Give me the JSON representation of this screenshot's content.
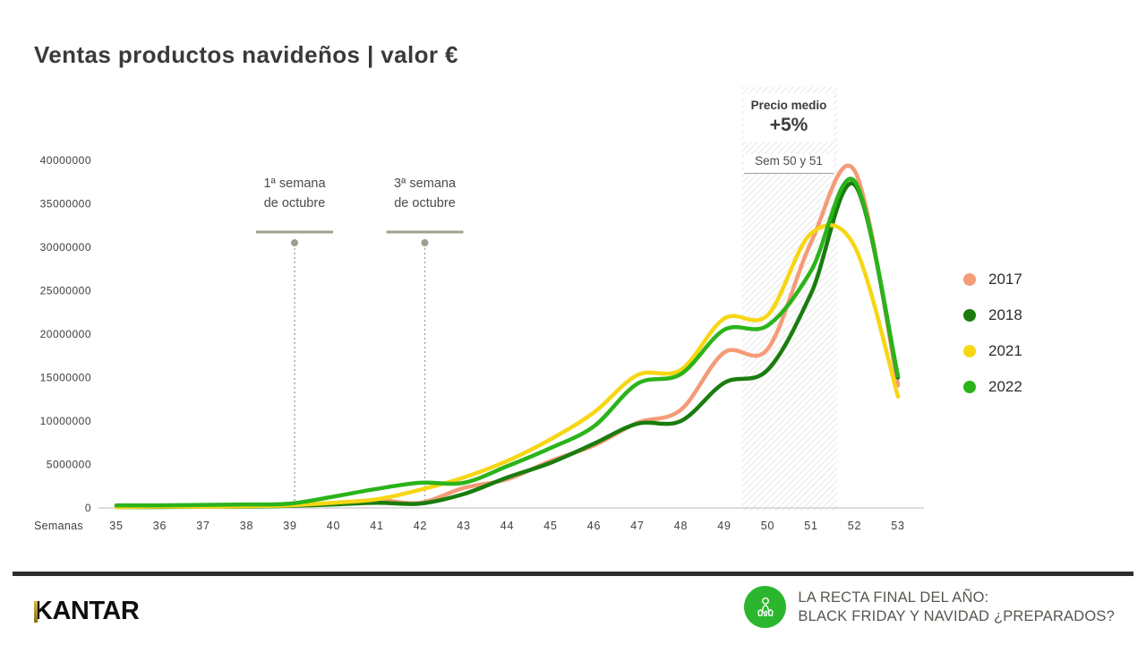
{
  "title": "Ventas productos navideños  |  valor €",
  "chart_data": {
    "type": "line",
    "title": "Ventas productos navideños | valor €",
    "xlabel": "Semanas",
    "ylabel": "",
    "x": [
      35,
      36,
      37,
      38,
      39,
      40,
      41,
      42,
      43,
      44,
      45,
      46,
      47,
      48,
      49,
      50,
      51,
      52,
      53
    ],
    "ylim": [
      0,
      40000000
    ],
    "y_ticks": [
      0,
      5000000,
      10000000,
      15000000,
      20000000,
      25000000,
      30000000,
      35000000,
      40000000
    ],
    "grid": false,
    "legend_position": "right",
    "series": [
      {
        "name": "2017",
        "color": "#F49B77",
        "values": [
          150000,
          150000,
          200000,
          200000,
          300000,
          500000,
          900000,
          600000,
          2300000,
          3300000,
          5400000,
          7200000,
          9800000,
          11300000,
          17900000,
          18300000,
          30600000,
          38800000,
          14100000
        ]
      },
      {
        "name": "2018",
        "color": "#1A7C0E",
        "values": [
          100000,
          100000,
          150000,
          150000,
          250000,
          400000,
          600000,
          500000,
          1600000,
          3500000,
          5200000,
          7400000,
          9700000,
          10000000,
          14400000,
          15900000,
          24700000,
          37200000,
          15000000
        ]
      },
      {
        "name": "2021",
        "color": "#F7D614",
        "values": [
          100000,
          150000,
          150000,
          200000,
          300000,
          600000,
          1000000,
          2100000,
          3500000,
          5400000,
          7900000,
          11000000,
          15300000,
          15900000,
          21800000,
          22200000,
          31600000,
          30100000,
          12800000
        ]
      },
      {
        "name": "2022",
        "color": "#2BB41A",
        "values": [
          300000,
          300000,
          350000,
          400000,
          500000,
          1300000,
          2200000,
          2900000,
          2900000,
          4800000,
          6900000,
          9400000,
          14300000,
          15400000,
          20500000,
          21000000,
          27300000,
          37600000,
          15200000
        ]
      }
    ],
    "annotations": [
      {
        "line1": "1ª semana",
        "line2": "de octubre",
        "week": 39
      },
      {
        "line1": "3ª semana",
        "line2": "de octubre",
        "week": 42
      }
    ],
    "highlight_band": {
      "from_week": 49.4,
      "to_week": 51.6,
      "title": "Precio medio",
      "value": "+5%",
      "subtitle": "Sem 50 y 51"
    }
  },
  "footer": {
    "brand": "KANTAR",
    "line1": "LA RECTA FINAL DEL AÑO:",
    "line2": "BLACK FRIDAY Y NAVIDAD ¿PREPARADOS?"
  }
}
